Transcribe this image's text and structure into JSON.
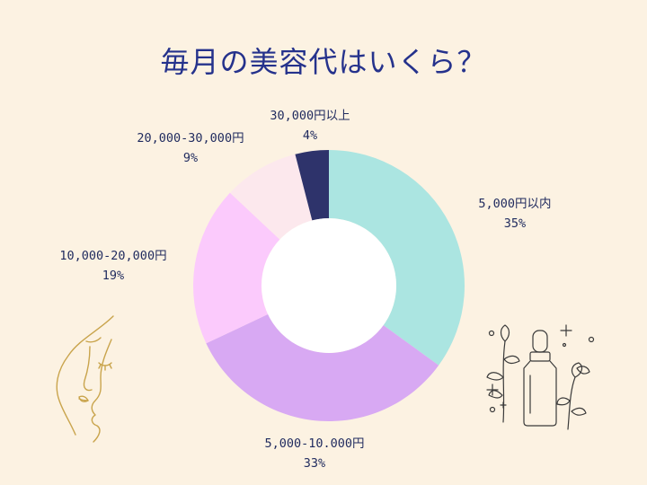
{
  "colors": {
    "background": "#fcf2e2",
    "title": "#25328c",
    "face_line": "#c9a44c",
    "bottle_line": "#3a3a3a"
  },
  "chart_data": {
    "type": "pie",
    "title": "毎月の美容代はいくら？",
    "donut": true,
    "slices": [
      {
        "label": "5,000円以内",
        "value": 35,
        "value_text": "35%",
        "color": "#abe5e1"
      },
      {
        "label": "5,000-10.000円",
        "value": 33,
        "value_text": "33%",
        "color": "#d8a9f3"
      },
      {
        "label": "10,000-20,000円",
        "value": 19,
        "value_text": "19%",
        "color": "#fbcafc"
      },
      {
        "label": "20,000-30,000円",
        "value": 9,
        "value_text": "9%",
        "color": "#fce8ed"
      },
      {
        "label": "30,000円以上",
        "value": 4,
        "value_text": "4%",
        "color": "#2e336b"
      }
    ]
  },
  "decorations": [
    {
      "icon": "face-line-art-icon"
    },
    {
      "icon": "serum-bottle-with-flowers-icon"
    }
  ]
}
